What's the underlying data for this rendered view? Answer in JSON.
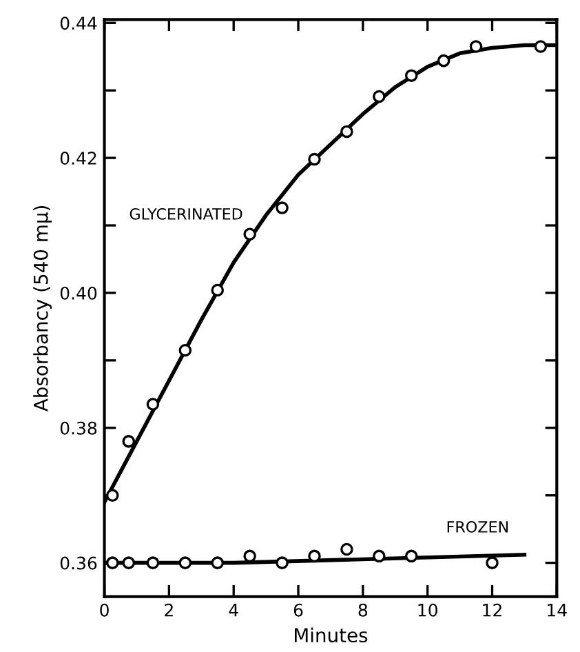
{
  "chart_data": {
    "type": "scatter",
    "xlabel": "Minutes",
    "ylabel": "Absorbancy (540 mμ)",
    "xlim": [
      0,
      14
    ],
    "ylim": [
      0.355,
      0.4405
    ],
    "xticks": [
      0,
      2,
      4,
      6,
      8,
      10,
      12,
      14
    ],
    "yticks": [
      {
        "value": 0.36,
        "label": "0.36"
      },
      {
        "value": 0.37,
        "label": null
      },
      {
        "value": 0.38,
        "label": "0.38"
      },
      {
        "value": 0.39,
        "label": null
      },
      {
        "value": 0.4,
        "label": "0.40"
      },
      {
        "value": 0.41,
        "label": null
      },
      {
        "value": 0.42,
        "label": "0.42"
      },
      {
        "value": 0.43,
        "label": null
      },
      {
        "value": 0.44,
        "label": "0.44"
      }
    ],
    "grid": false,
    "marker": "circle",
    "series": [
      {
        "color": "#000000",
        "x": [
          0.25,
          0.75,
          1.5,
          2.5,
          3.5,
          4.5,
          5.5,
          6.5,
          7.5,
          8.5,
          9.5,
          10.5,
          11.5,
          13.5
        ],
        "values": [
          0.37,
          0.378,
          0.3835,
          0.3915,
          0.4004,
          0.4087,
          0.4126,
          0.4198,
          0.4239,
          0.4291,
          0.4322,
          0.4344,
          0.4365,
          0.4365
        ]
      },
      {
        "type": "line",
        "name": "GLYCERINATED",
        "color": "#000000",
        "marker": "none",
        "x": [
          0,
          1,
          2,
          3,
          4,
          5,
          6,
          7,
          8,
          9,
          10,
          11,
          12,
          13,
          14
        ],
        "values": [
          0.369,
          0.378,
          0.387,
          0.396,
          0.4045,
          0.4115,
          0.4175,
          0.422,
          0.4265,
          0.4305,
          0.4335,
          0.4355,
          0.4363,
          0.4367,
          0.4367
        ]
      },
      {
        "color": "#000000",
        "x": [
          0.25,
          0.75,
          1.5,
          2.5,
          3.5,
          4.5,
          5.5,
          6.5,
          7.5,
          8.5,
          9.5,
          12
        ],
        "values": [
          0.36,
          0.36,
          0.36,
          0.36,
          0.36,
          0.361,
          0.36,
          0.361,
          0.362,
          0.361,
          0.361,
          0.36
        ]
      },
      {
        "type": "line",
        "name": "FROZEN",
        "color": "#000000",
        "marker": "none",
        "x": [
          0,
          4,
          13
        ],
        "values": [
          0.36,
          0.36,
          0.3612
        ]
      }
    ]
  }
}
